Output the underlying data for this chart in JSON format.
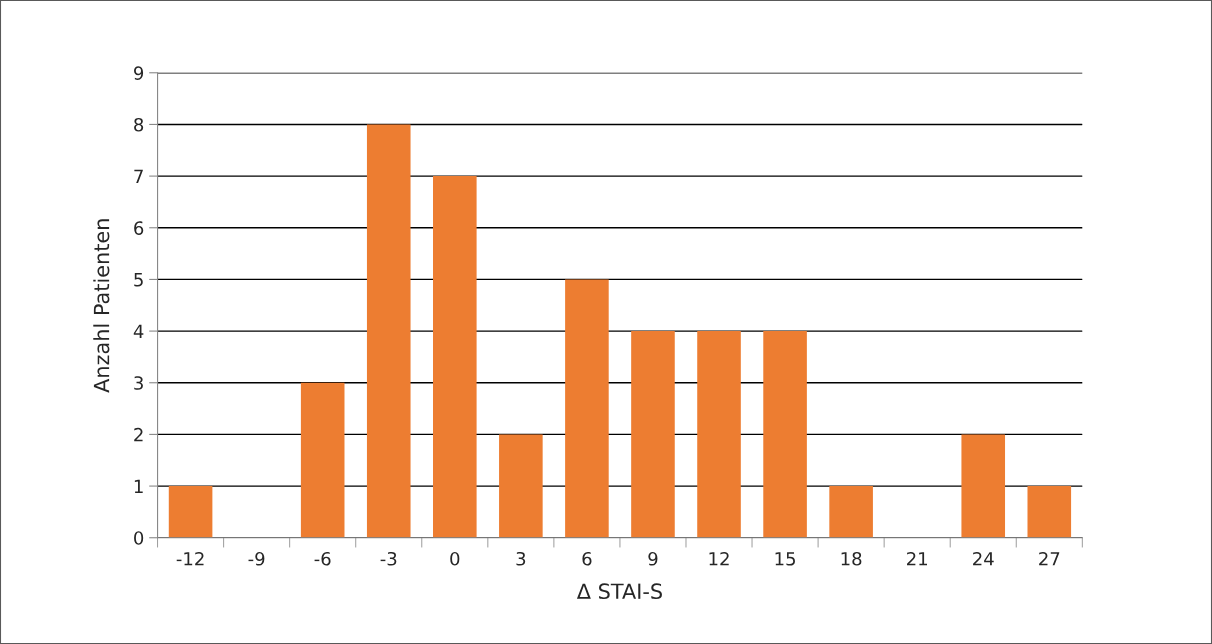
{
  "chart_data": {
    "type": "bar",
    "xlabel": "Δ STAI-S",
    "ylabel": "Anzahl Patienten",
    "categories": [
      "-12",
      "-9",
      "-6",
      "-3",
      "0",
      "3",
      "6",
      "9",
      "12",
      "15",
      "18",
      "21",
      "24",
      "27"
    ],
    "values": [
      1,
      0,
      3,
      8,
      7,
      2,
      5,
      4,
      4,
      4,
      1,
      0,
      2,
      1
    ],
    "color": "#ed7d31",
    "ylim": [
      0,
      9
    ],
    "yticks": [
      0,
      1,
      2,
      3,
      4,
      5,
      6,
      7,
      8,
      9
    ],
    "grid": "y"
  }
}
